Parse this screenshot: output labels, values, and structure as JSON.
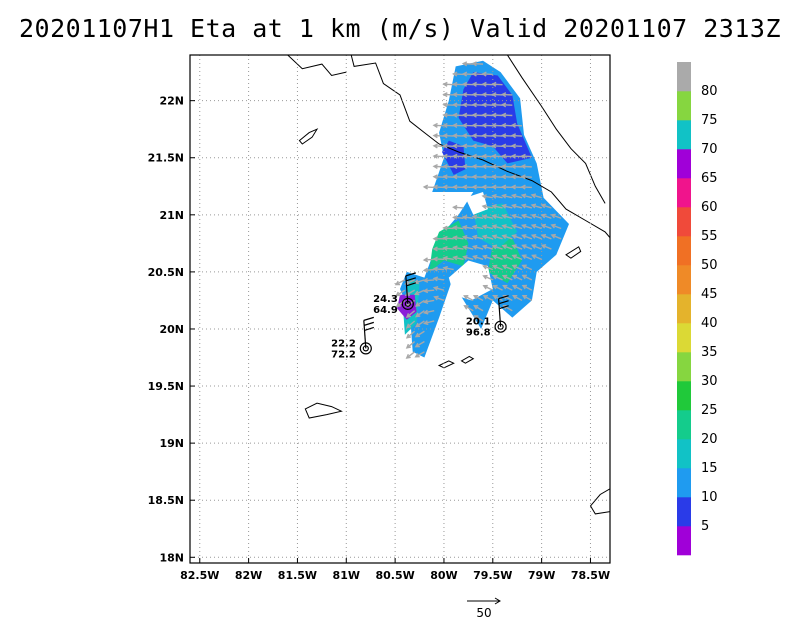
{
  "title": "20201107H1 Eta at 1 km (m/s) Valid 20201107 2313Z",
  "chart_data": {
    "type": "heatmap",
    "title": "20201107H1 Eta at 1 km (m/s) Valid 20201107 2313Z",
    "variable": "wind speed at 1 km (m/s)",
    "x_range": [
      -82.6,
      -78.3
    ],
    "y_range": [
      17.95,
      22.4
    ],
    "x_ticks": [
      {
        "value": -82.5,
        "label": "82.5W"
      },
      {
        "value": -82.0,
        "label": "82W"
      },
      {
        "value": -81.5,
        "label": "81.5W"
      },
      {
        "value": -81.0,
        "label": "81W"
      },
      {
        "value": -80.5,
        "label": "80.5W"
      },
      {
        "value": -80.0,
        "label": "80W"
      },
      {
        "value": -79.5,
        "label": "79.5W"
      },
      {
        "value": -79.0,
        "label": "79W"
      },
      {
        "value": -78.5,
        "label": "78.5W"
      }
    ],
    "y_ticks": [
      {
        "value": 18.0,
        "label": "18N"
      },
      {
        "value": 18.5,
        "label": "18.5N"
      },
      {
        "value": 19.0,
        "label": "19N"
      },
      {
        "value": 19.5,
        "label": "19.5N"
      },
      {
        "value": 20.0,
        "label": "20N"
      },
      {
        "value": 20.5,
        "label": "20.5N"
      },
      {
        "value": 21.0,
        "label": "21N"
      },
      {
        "value": 21.5,
        "label": "21.5N"
      },
      {
        "value": 22.0,
        "label": "22N"
      }
    ],
    "grid": true,
    "colorbar": {
      "placement": "right",
      "levels": [
        {
          "label": "5",
          "color": "#a000d8"
        },
        {
          "label": "10",
          "color": "#2a3be8"
        },
        {
          "label": "15",
          "color": "#1f9bf0"
        },
        {
          "label": "20",
          "color": "#11c2c6"
        },
        {
          "label": "25",
          "color": "#14cc8c"
        },
        {
          "label": "30",
          "color": "#20c93a"
        },
        {
          "label": "35",
          "color": "#86d640"
        },
        {
          "label": "40",
          "color": "#dbd935"
        },
        {
          "label": "45",
          "color": "#e4b32c"
        },
        {
          "label": "50",
          "color": "#ef8a27"
        },
        {
          "label": "55",
          "color": "#f07024"
        },
        {
          "label": "60",
          "color": "#f04a3a"
        },
        {
          "label": "65",
          "color": "#f0148c"
        },
        {
          "label": "70",
          "color": "#a000d8"
        },
        {
          "label": "75",
          "color": "#11c2c6"
        },
        {
          "label": "80",
          "color": "#86d640"
        },
        {
          "label": "",
          "color": "#aaaaaa"
        }
      ]
    },
    "stations": [
      {
        "lon": -80.8,
        "lat": 19.83,
        "label_top": "22.2",
        "label_bottom": "72.2"
      },
      {
        "lon": -80.37,
        "lat": 20.22,
        "label_top": "24.3",
        "label_bottom": "64.9"
      },
      {
        "lon": -79.42,
        "lat": 20.02,
        "label_top": "20.1",
        "label_bottom": "96.8"
      }
    ],
    "reference_vector": {
      "value": "50"
    }
  },
  "colors": {
    "speed_10": "#2a3be8",
    "speed_15": "#1f9bf0",
    "speed_20": "#11c2c6",
    "speed_25": "#14cc8c",
    "speed_70": "#8a1fd8",
    "vector": "#a8a8a8",
    "coast": "#000000",
    "grid": "#999999"
  }
}
